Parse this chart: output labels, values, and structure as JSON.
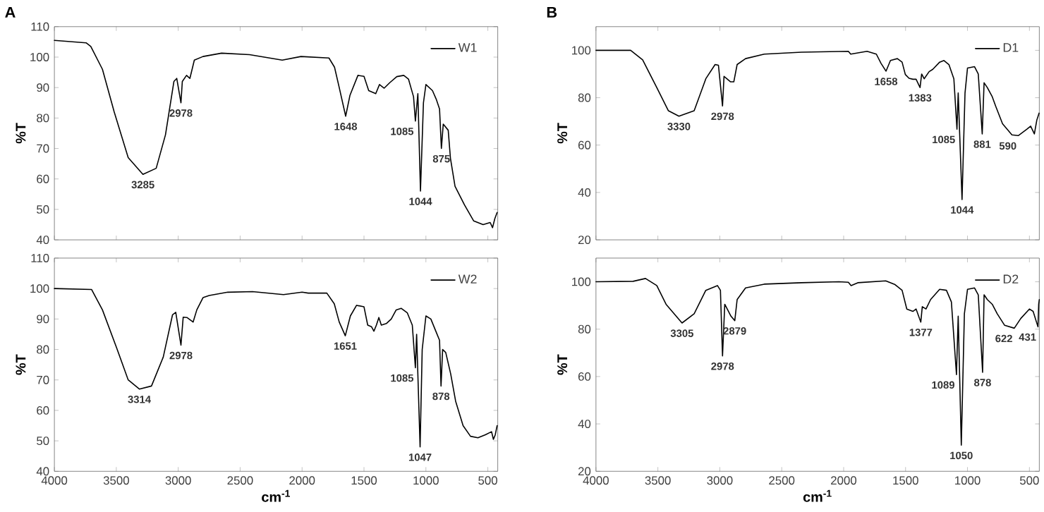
{
  "chart_data": [
    {
      "type": "line",
      "title": "A",
      "ylabel": "%T",
      "xlim": [
        4000,
        420
      ],
      "ylim": [
        40,
        110
      ],
      "xticks": [
        4000,
        3500,
        3000,
        2500,
        2000,
        1500,
        1000,
        500
      ],
      "yticks": [
        40,
        50,
        60,
        70,
        80,
        90,
        100,
        110
      ],
      "tick_labels": "y",
      "legend": "top right",
      "series": [
        {
          "name": "W1",
          "color": "#000000",
          "x": [
            4000,
            3744,
            3706,
            3612,
            3517,
            3404,
            3285,
            3178,
            3103,
            3035,
            3012,
            2978,
            2967,
            2933,
            2906,
            2870,
            2800,
            2650,
            2424,
            2160,
            2009,
            1783,
            1738,
            1700,
            1648,
            1613,
            1549,
            1500,
            1462,
            1405,
            1375,
            1337,
            1292,
            1235,
            1179,
            1141,
            1100,
            1085,
            1065,
            1044,
            1020,
            1000,
            947,
            915,
            890,
            875,
            860,
            820,
            802,
            765,
            689,
            614,
            538,
            481,
            462,
            444,
            425
          ],
          "values": [
            105.5,
            104.7,
            103.5,
            96,
            82,
            67,
            61.5,
            63.5,
            74.5,
            92,
            93,
            85,
            92,
            94,
            93,
            99,
            100.2,
            101.3,
            100.8,
            99,
            100.2,
            99.7,
            96.7,
            90,
            80.6,
            87.5,
            94,
            93.7,
            89,
            88,
            91,
            89.8,
            91.6,
            93.6,
            94,
            92.8,
            87,
            79,
            88,
            56,
            85,
            91,
            89,
            86,
            83,
            70,
            78,
            76,
            66.8,
            57.6,
            51.5,
            46.2,
            45,
            45.7,
            44,
            46.9,
            49
          ]
        }
      ],
      "annotations": [
        {
          "text": "3285",
          "x": 3285,
          "y": 61.5
        },
        {
          "text": "2978",
          "x": 2978,
          "y": 85
        },
        {
          "text": "1648",
          "x": 1648,
          "y": 80.6
        },
        {
          "text": "1085",
          "x": 1085,
          "y": 79
        },
        {
          "text": "1044",
          "x": 1044,
          "y": 56
        },
        {
          "text": "875",
          "x": 875,
          "y": 70
        }
      ]
    },
    {
      "type": "line",
      "xlabel": "cm$^{-1}$",
      "ylabel": "%T",
      "xlim": [
        4000,
        420
      ],
      "ylim": [
        40,
        110
      ],
      "xticks": [
        4000,
        3500,
        3000,
        2500,
        2000,
        1500,
        1000,
        500
      ],
      "yticks": [
        40,
        50,
        60,
        70,
        80,
        90,
        100,
        110
      ],
      "legend": "top right",
      "series": [
        {
          "name": "W2",
          "color": "#000000",
          "x": [
            4000,
            3700,
            3612,
            3498,
            3404,
            3314,
            3216,
            3121,
            3046,
            3020,
            2978,
            2960,
            2930,
            2880,
            2850,
            2800,
            2750,
            2600,
            2400,
            2150,
            2000,
            1950,
            1800,
            1740,
            1700,
            1651,
            1610,
            1560,
            1500,
            1470,
            1440,
            1420,
            1400,
            1380,
            1360,
            1320,
            1280,
            1240,
            1200,
            1150,
            1110,
            1085,
            1075,
            1047,
            1030,
            1000,
            960,
            920,
            890,
            878,
            865,
            840,
            800,
            760,
            700,
            640,
            580,
            520,
            470,
            455,
            440,
            425
          ],
          "values": [
            100,
            99.7,
            93,
            80.6,
            70,
            67,
            68,
            77.5,
            91.4,
            92.2,
            81.4,
            90.6,
            90.5,
            89,
            93,
            97,
            97.7,
            98.8,
            99,
            98,
            98.8,
            98.5,
            98.5,
            95,
            89,
            84.5,
            91,
            94.5,
            94,
            88,
            87.5,
            86,
            88,
            90.5,
            88,
            88.5,
            90,
            93,
            93.5,
            92,
            88,
            74,
            85,
            48,
            80,
            91,
            90,
            86,
            83,
            68,
            80,
            79,
            72,
            63,
            55,
            51.5,
            51,
            52,
            53,
            50.5,
            52,
            55
          ]
        }
      ],
      "annotations": [
        {
          "text": "3314",
          "x": 3314,
          "y": 67
        },
        {
          "text": "2978",
          "x": 2978,
          "y": 81.4
        },
        {
          "text": "1651",
          "x": 1651,
          "y": 84.5
        },
        {
          "text": "1085",
          "x": 1085,
          "y": 74
        },
        {
          "text": "1047",
          "x": 1047,
          "y": 48
        },
        {
          "text": "878",
          "x": 878,
          "y": 68
        }
      ]
    },
    {
      "type": "line",
      "title": "B",
      "ylabel": "%T",
      "xlim": [
        4000,
        420
      ],
      "ylim": [
        20,
        110
      ],
      "xticks": [
        4000,
        3500,
        3000,
        2500,
        2000,
        1500,
        1000,
        500
      ],
      "yticks": [
        20,
        40,
        60,
        80,
        100
      ],
      "tick_labels": "y",
      "legend": "top right",
      "series": [
        {
          "name": "D1",
          "color": "#000000",
          "x": [
            4000,
            3720,
            3623,
            3509,
            3415,
            3330,
            3207,
            3113,
            3038,
            3011,
            2978,
            2966,
            2943,
            2913,
            2887,
            2860,
            2792,
            2641,
            2340,
            1962,
            1943,
            1811,
            1736,
            1698,
            1658,
            1622,
            1566,
            1528,
            1502,
            1472,
            1441,
            1415,
            1383,
            1370,
            1350,
            1310,
            1280,
            1225,
            1190,
            1150,
            1110,
            1085,
            1075,
            1044,
            1020,
            1000,
            943,
            913,
            881,
            866,
            840,
            800,
            773,
            717,
            641,
            590,
            520,
            490,
            460,
            440,
            422
          ],
          "values": [
            100,
            100,
            96,
            84.3,
            74.5,
            72.2,
            74.5,
            88,
            94,
            93.7,
            76.5,
            89,
            88,
            86.7,
            86.7,
            94,
            96.5,
            98.4,
            99.2,
            99.6,
            98.4,
            99.6,
            98.4,
            94.5,
            91.2,
            95.7,
            96.5,
            95,
            89.8,
            88.2,
            87.8,
            87.8,
            84.3,
            90,
            88,
            91,
            92,
            95,
            95.7,
            94,
            88,
            66.7,
            82,
            37,
            82,
            92.5,
            93.1,
            90,
            64.7,
            86.3,
            84.3,
            80.4,
            76.5,
            69,
            64.3,
            64,
            66.7,
            68,
            64.7,
            70.6,
            73.5
          ]
        }
      ],
      "annotations": [
        {
          "text": "3330",
          "x": 3330,
          "y": 72.2
        },
        {
          "text": "2978",
          "x": 2978,
          "y": 76.5
        },
        {
          "text": "1658",
          "x": 1658,
          "y": 91.2
        },
        {
          "text": "1383",
          "x": 1383,
          "y": 84.3
        },
        {
          "text": "1085",
          "x": 1085,
          "y": 66.7
        },
        {
          "text": "1044",
          "x": 1044,
          "y": 37
        },
        {
          "text": "881",
          "x": 881,
          "y": 64.7
        },
        {
          "text": "590",
          "x": 590,
          "y": 64
        }
      ]
    },
    {
      "type": "line",
      "xlabel": "cm$^{-1}$",
      "ylabel": "%T",
      "xlim": [
        4000,
        420
      ],
      "ylim": [
        20,
        110
      ],
      "xticks": [
        4000,
        3500,
        3000,
        2500,
        2000,
        1500,
        1000,
        500
      ],
      "yticks": [
        20,
        40,
        60,
        80,
        100
      ],
      "legend": "top right",
      "series": [
        {
          "name": "D2",
          "color": "#000000",
          "x": [
            4000,
            3700,
            3600,
            3509,
            3434,
            3305,
            3207,
            3113,
            3019,
            2995,
            2978,
            2960,
            2940,
            2910,
            2879,
            2860,
            2792,
            2641,
            2340,
            2037,
            1962,
            1940,
            1886,
            1660,
            1585,
            1528,
            1490,
            1441,
            1415,
            1377,
            1365,
            1335,
            1298,
            1225,
            1170,
            1130,
            1089,
            1075,
            1050,
            1025,
            1000,
            943,
            913,
            878,
            866,
            840,
            800,
            760,
            700,
            622,
            570,
            500,
            470,
            431,
            425,
            420
          ],
          "values": [
            100,
            100.2,
            101.4,
            98.4,
            90.5,
            82.6,
            86.5,
            96.4,
            98.4,
            96.4,
            68.7,
            90.5,
            88.5,
            85.5,
            83.6,
            92.5,
            97.4,
            99,
            99.6,
            100,
            99.8,
            98.4,
            99.6,
            100.4,
            98.8,
            96.4,
            88.5,
            87.5,
            88.5,
            83,
            89.5,
            88.5,
            92.5,
            96.8,
            96.4,
            91.5,
            60.8,
            85.5,
            31,
            86.5,
            96.8,
            97.4,
            94.5,
            61.8,
            94.5,
            92.5,
            90.5,
            86.5,
            81.6,
            80.4,
            84.5,
            88.5,
            87.5,
            81,
            90.5,
            92.5
          ]
        }
      ],
      "annotations": [
        {
          "text": "3305",
          "x": 3305,
          "y": 82.6
        },
        {
          "text": "2978",
          "x": 2978,
          "y": 68.7
        },
        {
          "text": "2879",
          "x": 2879,
          "y": 83.6
        },
        {
          "text": "1377",
          "x": 1377,
          "y": 83
        },
        {
          "text": "1089",
          "x": 1089,
          "y": 60.8
        },
        {
          "text": "1050",
          "x": 1050,
          "y": 31
        },
        {
          "text": "878",
          "x": 878,
          "y": 61.8
        },
        {
          "text": "622",
          "x": 622,
          "y": 80.4
        },
        {
          "text": "431",
          "x": 431,
          "y": 81
        }
      ]
    }
  ]
}
